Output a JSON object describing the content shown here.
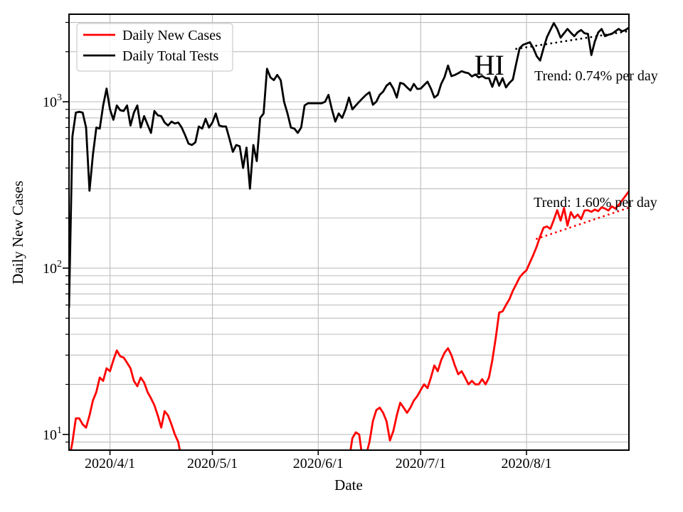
{
  "figure": {
    "xlabel": "Date",
    "ylabel": "Daily New Cases",
    "background_color": "#ffffff",
    "spine_color": "#000000"
  },
  "legend": {
    "items": [
      {
        "label": "Daily New Cases",
        "color": "#ff0000"
      },
      {
        "label": "Daily Total Tests",
        "color": "#000000"
      }
    ]
  },
  "chart_data": {
    "type": "line",
    "title": "",
    "xlabel": "Date",
    "ylabel": "Daily New Cases",
    "y_scale": "log",
    "ylim": [
      8.05,
      3360
    ],
    "grid": true,
    "grid_color": "#bdbdbd",
    "legend_position": "upper left",
    "x_start_date": "2020/3/20",
    "x_end_date": "2020/8/31",
    "total_days": 164,
    "x_ticks": [
      {
        "day": 12,
        "label": "2020/4/1"
      },
      {
        "day": 42,
        "label": "2020/5/1"
      },
      {
        "day": 73,
        "label": "2020/6/1"
      },
      {
        "day": 103,
        "label": "2020/7/1"
      },
      {
        "day": 134,
        "label": "2020/8/1"
      }
    ],
    "y_ticks": [
      {
        "value": 10,
        "mantissa": "10",
        "exp": "1"
      },
      {
        "value": 100,
        "mantissa": "10",
        "exp": "2"
      },
      {
        "value": 1000,
        "mantissa": "10",
        "exp": "3"
      }
    ],
    "y_minor_gridlines": [
      9,
      20,
      30,
      40,
      50,
      60,
      70,
      80,
      90,
      200,
      300,
      400,
      500,
      600,
      700,
      800,
      900,
      2000,
      3000
    ],
    "series": [
      {
        "name": "Daily New Cases",
        "color": "#ff0000",
        "values": [
          7,
          9,
          12.5,
          12.5,
          11.5,
          11,
          13,
          16,
          18,
          22,
          21,
          25,
          24,
          28,
          32,
          29.5,
          29,
          27,
          25,
          21,
          19.5,
          22,
          20.5,
          18,
          16.5,
          15,
          13,
          11,
          13.8,
          13,
          11.5,
          10,
          9,
          7,
          null,
          null,
          null,
          null,
          null,
          null,
          null,
          null,
          null,
          null,
          null,
          null,
          null,
          null,
          null,
          null,
          null,
          null,
          null,
          null,
          null,
          null,
          null,
          null,
          null,
          null,
          null,
          null,
          null,
          null,
          null,
          null,
          null,
          null,
          null,
          null,
          null,
          null,
          null,
          null,
          null,
          null,
          null,
          null,
          null,
          null,
          null,
          null,
          7,
          9.5,
          10.3,
          10,
          7,
          7.5,
          9,
          12,
          14,
          14.5,
          13.5,
          12,
          9.2,
          10.5,
          13,
          15.5,
          14.5,
          13.5,
          14.5,
          16,
          17,
          18.5,
          20,
          19,
          22,
          26,
          24,
          28,
          31,
          33,
          30,
          26,
          23,
          24,
          22,
          20,
          21,
          20,
          20,
          21.5,
          20,
          22,
          28,
          38,
          54,
          55,
          60,
          65,
          73,
          80,
          88,
          93,
          97,
          108,
          120,
          135,
          155,
          175,
          178,
          172,
          195,
          223,
          193,
          230,
          180,
          217,
          200,
          210,
          197,
          222,
          223,
          218,
          225,
          220,
          232,
          228,
          222,
          235,
          228,
          240,
          255,
          272,
          290
        ]
      },
      {
        "name": "Daily Total Tests",
        "color": "#000000",
        "values": [
          58,
          620,
          860,
          870,
          860,
          700,
          292,
          480,
          700,
          690,
          950,
          1200,
          900,
          780,
          950,
          890,
          880,
          950,
          720,
          860,
          950,
          700,
          820,
          730,
          650,
          880,
          830,
          820,
          750,
          720,
          760,
          740,
          750,
          700,
          630,
          560,
          550,
          570,
          710,
          690,
          790,
          700,
          750,
          850,
          720,
          710,
          710,
          600,
          500,
          550,
          540,
          400,
          530,
          300,
          550,
          440,
          800,
          850,
          1580,
          1400,
          1350,
          1450,
          1350,
          1000,
          850,
          700,
          690,
          650,
          700,
          950,
          980,
          980,
          980,
          980,
          980,
          1000,
          1100,
          900,
          760,
          850,
          800,
          900,
          1060,
          900,
          950,
          1000,
          1050,
          1100,
          1140,
          960,
          1000,
          1100,
          1150,
          1250,
          1300,
          1200,
          1060,
          1300,
          1280,
          1220,
          1170,
          1280,
          1194,
          1200,
          1260,
          1320,
          1200,
          1060,
          1100,
          1280,
          1410,
          1650,
          1425,
          1450,
          1485,
          1527,
          1500,
          1485,
          1420,
          1460,
          1400,
          1430,
          1385,
          1385,
          1230,
          1420,
          1250,
          1385,
          1220,
          1300,
          1360,
          1700,
          2100,
          2200,
          2240,
          2280,
          2100,
          1880,
          1770,
          2100,
          2450,
          2700,
          2970,
          2740,
          2430,
          2580,
          2740,
          2600,
          2480,
          2620,
          2700,
          2580,
          2560,
          1910,
          2300,
          2610,
          2740,
          2480,
          2530,
          2560,
          2650,
          2740,
          2650,
          2700,
          2790
        ]
      }
    ],
    "trend_lines": [
      {
        "series": "Daily Total Tests",
        "label": "Trend: 0.74% per day",
        "color": "#000000",
        "start_day": 131,
        "end_day": 164,
        "start_value": 2080,
        "end_value": 2660
      },
      {
        "series": "Daily New Cases",
        "label": "Trend: 1.60% per day",
        "color": "#ff0000",
        "start_day": 137,
        "end_day": 164,
        "start_value": 150,
        "end_value": 231
      }
    ],
    "annotations": {
      "state": {
        "text": "HI",
        "day": 123.1,
        "value": 1650
      },
      "trend_black": {
        "text": "Trend: 0.74% per day",
        "day": 136.3,
        "value": 1343
      },
      "trend_red": {
        "text": "Trend: 1.60% per day",
        "day": 136.1,
        "value": 233
      }
    }
  }
}
